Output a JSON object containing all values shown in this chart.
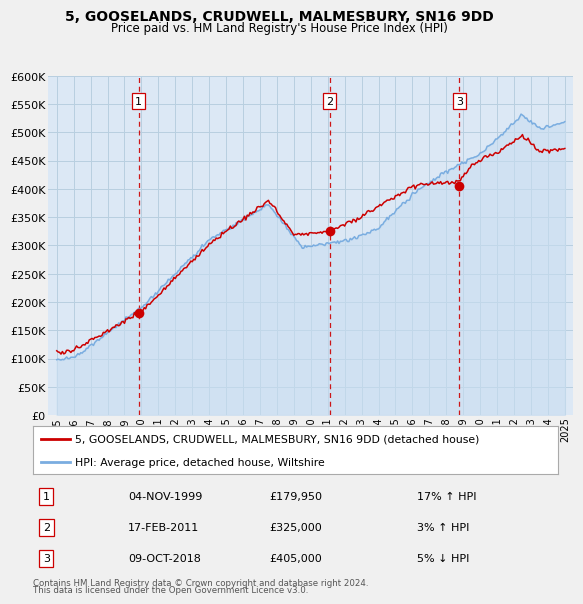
{
  "title": "5, GOOSELANDS, CRUDWELL, MALMESBURY, SN16 9DD",
  "subtitle": "Price paid vs. HM Land Registry's House Price Index (HPI)",
  "legend_label_red": "5, GOOSELANDS, CRUDWELL, MALMESBURY, SN16 9DD (detached house)",
  "legend_label_blue": "HPI: Average price, detached house, Wiltshire",
  "sale_points": [
    {
      "label": "1",
      "date": "04-NOV-1999",
      "price": 179950,
      "x": 1999.84,
      "pct": "17%",
      "dir": "↑"
    },
    {
      "label": "2",
      "date": "17-FEB-2011",
      "price": 325000,
      "x": 2011.12,
      "pct": "3%",
      "dir": "↑"
    },
    {
      "label": "3",
      "date": "09-OCT-2018",
      "price": 405000,
      "x": 2018.78,
      "pct": "5%",
      "dir": "↓"
    }
  ],
  "footer": [
    "Contains HM Land Registry data © Crown copyright and database right 2024.",
    "This data is licensed under the Open Government Licence v3.0."
  ],
  "ylim": [
    0,
    600000
  ],
  "yticks": [
    0,
    50000,
    100000,
    150000,
    200000,
    250000,
    300000,
    350000,
    400000,
    450000,
    500000,
    550000,
    600000
  ],
  "xlim": [
    1994.5,
    2025.5
  ],
  "red_color": "#cc0000",
  "blue_color": "#7aade0",
  "blue_fill": "#c8ddf0",
  "bg_color": "#f0f0f0",
  "plot_bg": "#dce8f5",
  "grid_color": "#b8cfe0",
  "vline_color": "#cc0000"
}
